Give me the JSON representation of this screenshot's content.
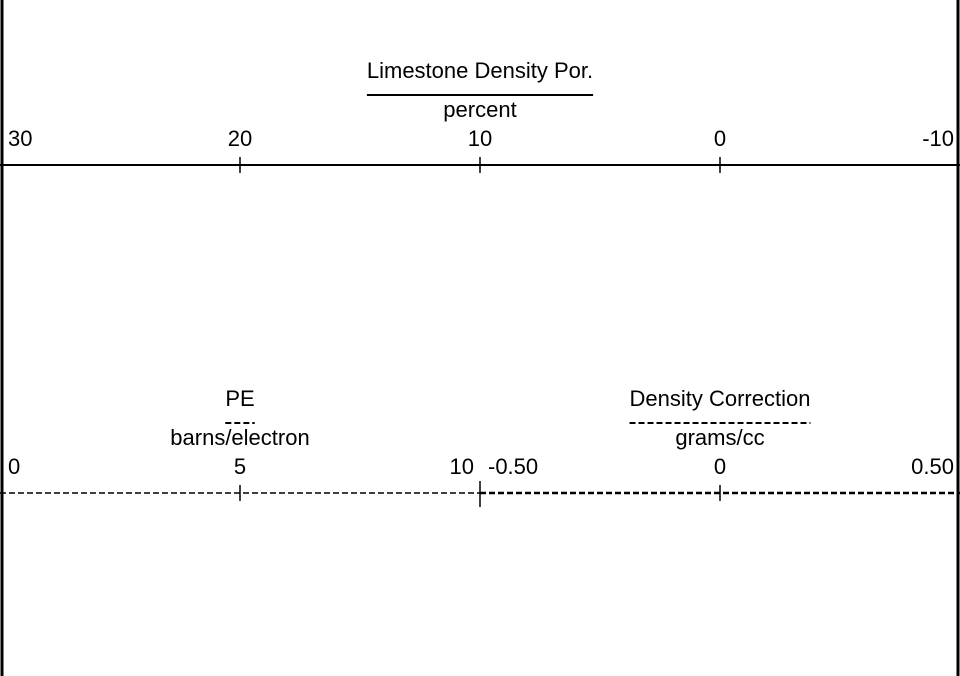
{
  "scales": [
    {
      "title": "Limestone Density Por.",
      "unit": "percent",
      "ticks": [
        30,
        20,
        10,
        0,
        -10
      ]
    },
    {
      "title": "PE",
      "unit": "barns/electron",
      "ticks": [
        0,
        5,
        10
      ]
    },
    {
      "title": "Density Correction",
      "unit": "grams/cc",
      "ticks": [
        {
          "value": -0.5,
          "label": "-0.50"
        },
        0,
        {
          "value": 0.5,
          "label": "0.50"
        }
      ]
    }
  ]
}
